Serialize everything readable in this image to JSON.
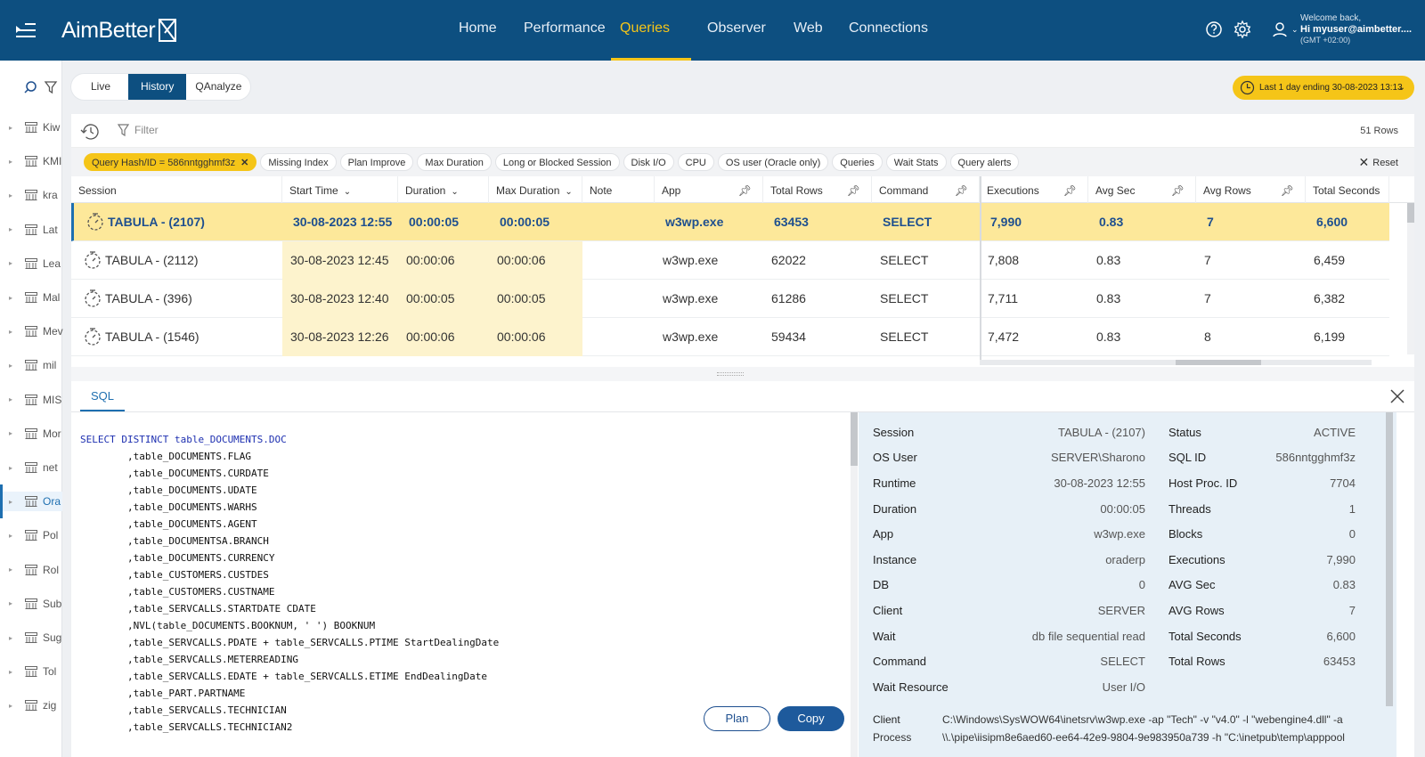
{
  "app": {
    "logo": "AimBetter"
  },
  "nav": [
    {
      "label": "Home"
    },
    {
      "label": "Performance"
    },
    {
      "label": "Queries"
    },
    {
      "label": "Observer"
    },
    {
      "label": "Web"
    },
    {
      "label": "Connections"
    }
  ],
  "user": {
    "welcome": "Welcome back,",
    "hi": "Hi myuser@aimbetter....",
    "tz": "(GMT +02:00)"
  },
  "sidebar": {
    "items": [
      {
        "label": "Kiw"
      },
      {
        "label": "KMI"
      },
      {
        "label": "kra"
      },
      {
        "label": "Lat"
      },
      {
        "label": "Lea"
      },
      {
        "label": "Mal"
      },
      {
        "label": "Mev"
      },
      {
        "label": "mil"
      },
      {
        "label": "MIS"
      },
      {
        "label": "Mor"
      },
      {
        "label": "net"
      },
      {
        "label": "Ora"
      },
      {
        "label": "Pol"
      },
      {
        "label": "Rol"
      },
      {
        "label": "Sub"
      },
      {
        "label": "Sug"
      },
      {
        "label": "Tol"
      },
      {
        "label": "zig"
      }
    ],
    "active_index": 11
  },
  "mode_tabs": [
    {
      "label": "Live"
    },
    {
      "label": "History"
    },
    {
      "label": "QAnalyze"
    }
  ],
  "date_range": "Last 1 day ending  30-08-2023 13:13",
  "filter": {
    "placeholder": "Filter",
    "rows": "51 Rows",
    "reset": "Reset"
  },
  "chips": [
    {
      "label": "Query Hash/ID = 586nntgghmf3z",
      "active": true
    },
    {
      "label": "Missing Index"
    },
    {
      "label": "Plan Improve"
    },
    {
      "label": "Max Duration"
    },
    {
      "label": "Long or Blocked Session"
    },
    {
      "label": "Disk I/O"
    },
    {
      "label": "CPU"
    },
    {
      "label": "OS user (Oracle only)"
    },
    {
      "label": "Queries"
    },
    {
      "label": "Wait Stats"
    },
    {
      "label": "Query alerts"
    }
  ],
  "table": {
    "columns": [
      "Session",
      "Start Time",
      "Duration",
      "Max Duration",
      "Note",
      "App",
      "Total Rows",
      "Command",
      "Executions",
      "Avg Sec",
      "Avg Rows",
      "Total Seconds"
    ],
    "rows": [
      [
        "TABULA - (2107)",
        "30-08-2023 12:55",
        "00:00:05",
        "00:00:05",
        "",
        "w3wp.exe",
        "63453",
        "SELECT",
        "7,990",
        "0.83",
        "7",
        "6,600"
      ],
      [
        "TABULA - (2112)",
        "30-08-2023 12:45",
        "00:00:06",
        "00:00:06",
        "",
        "w3wp.exe",
        "62022",
        "SELECT",
        "7,808",
        "0.83",
        "7",
        "6,459"
      ],
      [
        "TABULA - (396)",
        "30-08-2023 12:40",
        "00:00:05",
        "00:00:05",
        "",
        "w3wp.exe",
        "61286",
        "SELECT",
        "7,711",
        "0.83",
        "7",
        "6,382"
      ],
      [
        "TABULA - (1546)",
        "30-08-2023 12:26",
        "00:00:06",
        "00:00:06",
        "",
        "w3wp.exe",
        "59434",
        "SELECT",
        "7,472",
        "0.83",
        "8",
        "6,199"
      ]
    ]
  },
  "bottom": {
    "tab": "SQL",
    "sql_lines": [
      "SELECT DISTINCT table_DOCUMENTS.DOC",
      "        ,table_DOCUMENTS.FLAG",
      "        ,table_DOCUMENTS.CURDATE",
      "        ,table_DOCUMENTS.UDATE",
      "        ,table_DOCUMENTS.WARHS",
      "        ,table_DOCUMENTS.AGENT",
      "        ,table_DOCUMENTSA.BRANCH",
      "        ,table_DOCUMENTS.CURRENCY",
      "        ,table_CUSTOMERS.CUSTDES",
      "        ,table_CUSTOMERS.CUSTNAME",
      "        ,table_SERVCALLS.STARTDATE CDATE",
      "        ,NVL(table_DOCUMENTS.BOOKNUM, ' ') BOOKNUM",
      "        ,table_SERVCALLS.PDATE + table_SERVCALLS.PTIME StartDealingDate",
      "        ,table_SERVCALLS.METERREADING",
      "        ,table_SERVCALLS.EDATE + table_SERVCALLS.ETIME EndDealingDate",
      "        ,table_PART.PARTNAME",
      "        ,table_SERVCALLS.TECHNICIAN",
      "        ,table_SERVCALLS.TECHNICIAN2"
    ],
    "plan": "Plan",
    "copy": "Copy",
    "details_left": [
      [
        "Session",
        "TABULA - (2107)"
      ],
      [
        "OS User",
        "SERVER\\Sharono"
      ],
      [
        "Runtime",
        "30-08-2023 12:55"
      ],
      [
        "Duration",
        "00:00:05"
      ],
      [
        "App",
        "w3wp.exe"
      ],
      [
        "Instance",
        "oraderp"
      ],
      [
        "DB",
        "0"
      ],
      [
        "Client",
        "SERVER"
      ],
      [
        "Wait",
        "db file sequential read"
      ],
      [
        "Command",
        "SELECT"
      ],
      [
        "Wait Resource",
        "User I/O"
      ]
    ],
    "details_right": [
      [
        "Status",
        "ACTIVE"
      ],
      [
        "SQL ID",
        "586nntgghmf3z"
      ],
      [
        "Host Proc. ID",
        "7704"
      ],
      [
        "Threads",
        "1"
      ],
      [
        "Blocks",
        "0"
      ],
      [
        "Executions",
        "7,990"
      ],
      [
        "AVG Sec",
        "0.83"
      ],
      [
        "AVG Rows",
        "7"
      ],
      [
        "Total Seconds",
        "6,600"
      ],
      [
        "Total Rows",
        "63453"
      ]
    ],
    "client_label": "Client",
    "client_value": "C:\\Windows\\SysWOW64\\inetsrv\\w3wp.exe -ap \"Tech\" -v \"v4.0\" -l \"webengine4.dll\" -a",
    "process_label": "Process",
    "process_value": "\\\\.\\pipe\\iisipm8e6aed60-ee64-42e9-9804-9e983950a739 -h \"C:\\inetpub\\temp\\apppool"
  },
  "colors": {
    "brand": "#0d4f80",
    "accent": "#f5c518",
    "selected_row": "#fde89a"
  }
}
